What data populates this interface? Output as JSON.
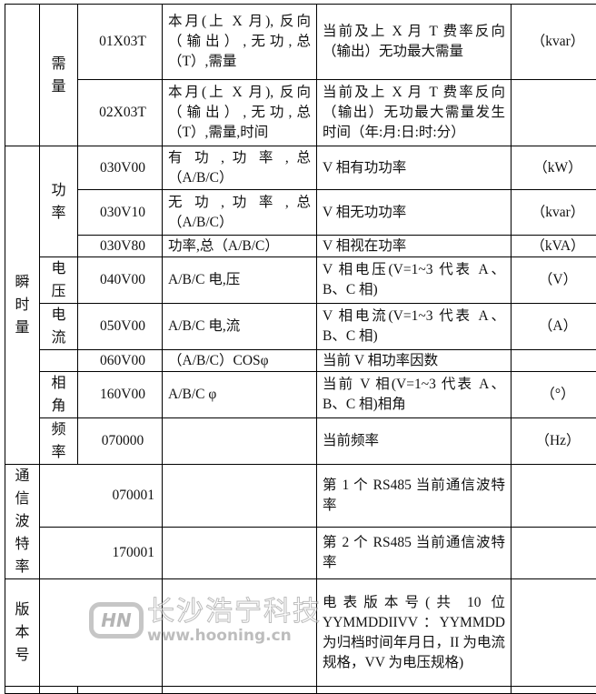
{
  "rows": [
    {
      "group2": "需量",
      "code": "01X03T",
      "content": "本月(上 X 月), 反向（输出）,无功,总（T）,需量",
      "desc": "当前及上 X 月 T 费率反向（输出）无功最大需量",
      "unit": "（kvar）"
    },
    {
      "code": "02X03T",
      "content": "本月(上 X 月), 反向（输出）,无功,总（T）,需量,时间",
      "desc": "当前及上 X 月 T 费率反向（输出）无功最大需量发生时间（年:月:日:时:分）",
      "unit": ""
    },
    {
      "group1": "瞬时量",
      "group2": "功率",
      "code": "030V00",
      "content": "有 功 , 功 率 , 总（A/B/C）",
      "desc": "V 相有功功率",
      "unit": "（kW）"
    },
    {
      "code": "030V10",
      "content": "无 功 , 功 率 , 总（A/B/C）",
      "desc": "V 相无功功率",
      "unit": "（kvar）"
    },
    {
      "code": "030V80",
      "content": "功率,总（A/B/C）",
      "desc": "V 相视在功率",
      "unit": "（kVA）"
    },
    {
      "group2": "电压",
      "code": "040V00",
      "content": "A/B/C 电,压",
      "desc": "V 相电压(V=1~3 代表 A、B、C 相)",
      "unit": "（V）"
    },
    {
      "group2": "电流",
      "code": "050V00",
      "content": "A/B/C 电,流",
      "desc": "V 相电流(V=1~3 代表 A、B、C 相)",
      "unit": "（A）"
    },
    {
      "code": "060V00",
      "content": "（A/B/C）COSφ",
      "desc": "当前 V 相功率因数",
      "unit": ""
    },
    {
      "group2": "相角",
      "code": "160V00",
      "content": "A/B/C  φ",
      "desc": "当前 V 相(V=1~3 代表 A、B、C 相)相角",
      "unit": "（°）"
    },
    {
      "group2": "频率",
      "code": "070000",
      "content": "",
      "desc": "当前频率",
      "unit": "（Hz）"
    },
    {
      "group1": "通信波特率",
      "code": "070001",
      "content": "",
      "desc": "第 1 个 RS485 当前通信波特率",
      "unit": ""
    },
    {
      "code": "170001",
      "content": "",
      "desc": "第 2 个 RS485 当前通信波特率",
      "unit": ""
    },
    {
      "group1": "版本号",
      "code": "",
      "content": "",
      "desc": "电表版本号(共 10 位 YYMMDDIIVV ：YYMMDD 为归档时间年月日，II 为电流规格，VV 为电压规格)",
      "unit": ""
    }
  ],
  "watermark": {
    "logo": "HN",
    "name": "长沙浩宁科技",
    "url": "www.hooning.cn"
  }
}
